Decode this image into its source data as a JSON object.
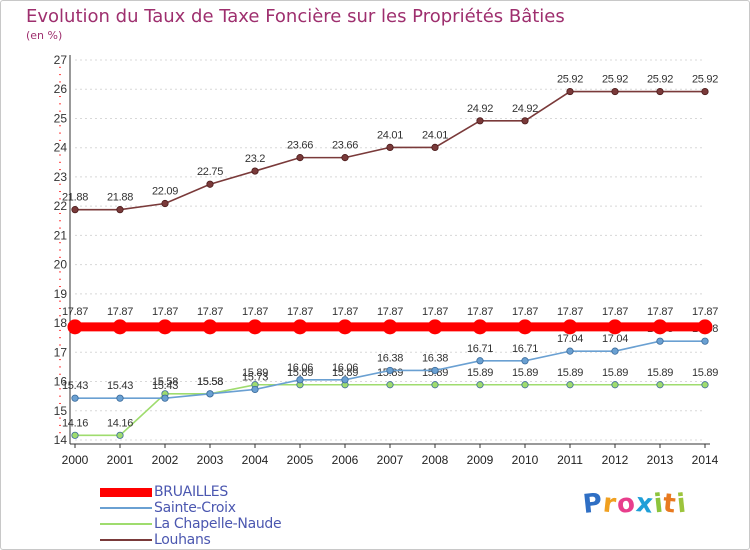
{
  "chart_data": {
    "type": "line",
    "title": "Evolution du Taux de Taxe Foncière sur les Propriétés Bâties",
    "unit_label": "(en %)",
    "xlabel": "",
    "ylabel": "",
    "ylim": [
      14,
      27
    ],
    "y_ticks": [
      "14",
      "15",
      "16",
      "17",
      "18",
      "19",
      "20",
      "21",
      "22",
      "23",
      "24",
      "25",
      "26",
      "27"
    ],
    "x": [
      "2000",
      "2001",
      "2002",
      "2003",
      "2004",
      "2005",
      "2006",
      "2007",
      "2008",
      "2009",
      "2010",
      "2011",
      "2012",
      "2013",
      "2014"
    ],
    "series": [
      {
        "name": "BRUAILLES",
        "color": "#ff0000",
        "values": [
          17.87,
          17.87,
          17.87,
          17.87,
          17.87,
          17.87,
          17.87,
          17.87,
          17.87,
          17.87,
          17.87,
          17.87,
          17.87,
          17.87,
          17.87
        ],
        "labels": [
          "17.87",
          "17.87",
          "17.87",
          "17.87",
          "17.87",
          "17.87",
          "17.87",
          "17.87",
          "17.87",
          "17.87",
          "17.87",
          "17.87",
          "17.87",
          "17.87",
          "17.87"
        ]
      },
      {
        "name": "Sainte-Croix",
        "color": "#6aa0d2",
        "values": [
          15.43,
          15.43,
          15.43,
          15.58,
          15.73,
          16.06,
          16.06,
          16.38,
          16.38,
          16.71,
          16.71,
          17.04,
          17.04,
          17.38,
          17.38
        ],
        "labels": [
          "15.43",
          "15.43",
          "15.43",
          "15.58",
          "15.73",
          "16.06",
          "16.06",
          "16.38",
          "16.38",
          "16.71",
          "16.71",
          "17.04",
          "17.04",
          "17.38",
          "17.38"
        ]
      },
      {
        "name": "La Chapelle-Naude",
        "color": "#9fdc6e",
        "values": [
          14.16,
          14.16,
          15.58,
          15.58,
          15.89,
          15.89,
          15.89,
          15.89,
          15.89,
          15.89,
          15.89,
          15.89,
          15.89,
          15.89,
          15.89
        ],
        "labels": [
          "14.16",
          "14.16",
          "15.58",
          "15.58",
          "15.89",
          "15.89",
          "15.89",
          "15.89",
          "15.89",
          "15.89",
          "15.89",
          "15.89",
          "15.89",
          "15.89",
          "15.89"
        ]
      },
      {
        "name": "Louhans",
        "color": "#7a3a3a",
        "values": [
          21.88,
          21.88,
          22.09,
          22.75,
          23.2,
          23.66,
          23.66,
          24.01,
          24.01,
          24.92,
          24.92,
          25.92,
          25.92,
          25.92,
          25.92
        ],
        "labels": [
          "21.88",
          "21.88",
          "22.09",
          "22.75",
          "23.2",
          "23.66",
          "23.66",
          "24.01",
          "24.01",
          "24.92",
          "24.92",
          "25.92",
          "25.92",
          "25.92",
          "25.92"
        ]
      }
    ],
    "legend_position": "bottom-left"
  },
  "logo": {
    "letters": [
      "P",
      "r",
      "o",
      "x",
      "i",
      "t",
      "i"
    ],
    "colors": [
      "#2f6fc4",
      "#f0a020",
      "#e83e8c",
      "#1f9fd8",
      "#8cc43c",
      "#e87a20",
      "#9cc43c"
    ]
  }
}
